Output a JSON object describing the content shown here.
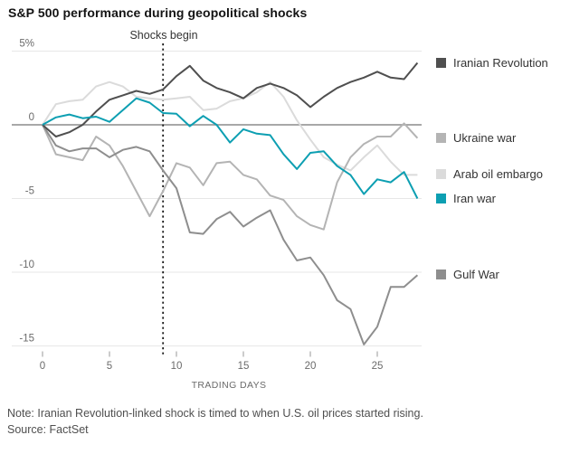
{
  "title": "S&P 500 performance during geopolitical shocks",
  "annotation": {
    "label": "Shocks begin",
    "day": 9
  },
  "note": "Note: Iranian Revolution-linked shock is timed to when U.S. oil prices started rising.",
  "source": "Source: FactSet",
  "x_axis": {
    "label": "TRADING DAYS",
    "ticks": [
      0,
      5,
      10,
      15,
      20,
      25
    ],
    "min": 0,
    "max": 28
  },
  "y_axis": {
    "ticks": [
      5,
      0,
      -5,
      -10,
      -15
    ],
    "tick_labels": [
      "5%",
      "0",
      "-5",
      "-10",
      "-15"
    ],
    "min": -15.5,
    "max": 5,
    "unit": "percent"
  },
  "colors": {
    "iranian_revolution": "#4f4f4f",
    "ukraine_war": "#b4b4b4",
    "arab_oil_embargo": "#dbdbdb",
    "iran_war": "#0d9fb2",
    "gulf_war": "#8e8e8e",
    "zero_line": "#9b9b9b",
    "gridline": "#e7e7e7",
    "tick_text": "#6b6b6b"
  },
  "legend": [
    {
      "name": "Iranian Revolution",
      "color": "#4f4f4f"
    },
    {
      "name": "Ukraine war",
      "color": "#b4b4b4"
    },
    {
      "name": "Arab oil embargo",
      "color": "#dbdbdb"
    },
    {
      "name": "Iran war",
      "color": "#0d9fb2"
    },
    {
      "name": "Gulf War",
      "color": "#8e8e8e"
    }
  ],
  "chart_data": {
    "type": "line",
    "title": "S&P 500 performance during geopolitical shocks",
    "xlabel": "TRADING DAYS",
    "ylabel": "% change since start, first y tick labeled 5%",
    "ylim": [
      -15.5,
      5
    ],
    "grid": "horizontal",
    "legend_position": "right, aligned to line endpoints",
    "annotation_vline": {
      "label": "Shocks begin",
      "x": 9,
      "style": "dotted"
    },
    "x": [
      0,
      1,
      2,
      3,
      4,
      5,
      6,
      7,
      8,
      9,
      10,
      11,
      12,
      13,
      14,
      15,
      16,
      17,
      18,
      19,
      20,
      21,
      22,
      23,
      24,
      25,
      26,
      27,
      28
    ],
    "series": [
      {
        "name": "Iranian Revolution",
        "color": "#4f4f4f",
        "values": [
          0,
          -0.8,
          -0.5,
          0,
          0.9,
          1.7,
          2,
          2.3,
          2.1,
          2.4,
          3.3,
          4,
          3,
          2.5,
          2.2,
          1.8,
          2.5,
          2.8,
          2.5,
          2,
          1.2,
          1.9,
          2.5,
          2.9,
          3.2,
          3.6,
          3.2,
          3.1,
          4.2
        ]
      },
      {
        "name": "Ukraine war",
        "color": "#b4b4b4",
        "values": [
          0,
          -2,
          -2.2,
          -2.4,
          -0.8,
          -1.4,
          -2.8,
          -4.5,
          -6.2,
          -4.5,
          -2.6,
          -2.9,
          -4.1,
          -2.6,
          -2.5,
          -3.4,
          -3.7,
          -4.8,
          -5.1,
          -6.2,
          -6.8,
          -7.1,
          -3.9,
          -2.2,
          -1.3,
          -0.8,
          -0.8,
          0.1,
          -0.9
        ]
      },
      {
        "name": "Arab oil embargo",
        "color": "#dbdbdb",
        "values": [
          0,
          1.4,
          1.6,
          1.7,
          2.6,
          2.9,
          2.6,
          1.9,
          1.8,
          1.7,
          1.8,
          1.9,
          1,
          1.1,
          1.6,
          1.8,
          2.2,
          2.9,
          1.9,
          0.3,
          -1,
          -2.2,
          -2.7,
          -3.1,
          -2.2,
          -1.4,
          -2.5,
          -3.4,
          -3.4
        ]
      },
      {
        "name": "Iran war",
        "color": "#0d9fb2",
        "values": [
          0,
          0.5,
          0.7,
          0.45,
          0.55,
          0.2,
          1,
          1.8,
          1.5,
          0.8,
          0.75,
          -0.1,
          0.6,
          0,
          -1.2,
          -0.3,
          -0.6,
          -0.7,
          -2,
          -3,
          -1.9,
          -1.8,
          -2.8,
          -3.4,
          -4.7,
          -3.7,
          -3.9,
          -3.2,
          -5
        ]
      },
      {
        "name": "Gulf War",
        "color": "#8e8e8e",
        "values": [
          0,
          -1.4,
          -1.8,
          -1.6,
          -1.6,
          -2.2,
          -1.7,
          -1.5,
          -1.8,
          -3.1,
          -4.3,
          -7.3,
          -7.4,
          -6.4,
          -5.9,
          -6.9,
          -6.3,
          -5.8,
          -7.8,
          -9.2,
          -9,
          -10.2,
          -11.9,
          -12.5,
          -14.9,
          -13.7,
          -11,
          -11,
          -10.2
        ]
      }
    ]
  }
}
